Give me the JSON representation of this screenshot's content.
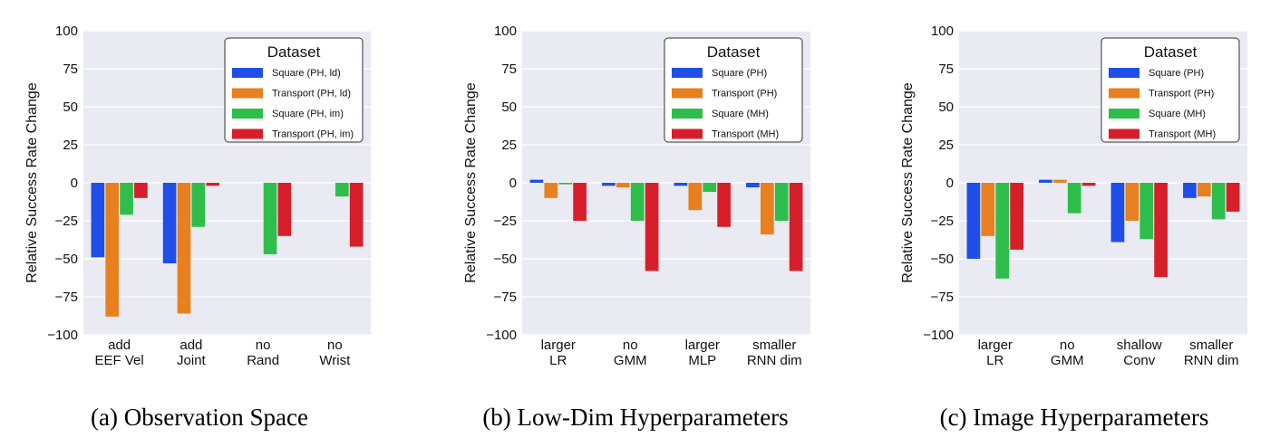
{
  "colors": {
    "plot_bg": "#EAEAF2",
    "grid": "#FFFFFF",
    "series": [
      "#1F4FE8",
      "#E8801F",
      "#2DBE4B",
      "#D61F2A"
    ]
  },
  "chart_data": [
    {
      "type": "bar",
      "caption": "(a) Observation Space",
      "ylabel": "Relative Success Rate Change",
      "ylim": [
        -100,
        100
      ],
      "yticks": [
        "100",
        "75",
        "50",
        "25",
        "0",
        "−25",
        "−50",
        "−75",
        "−100"
      ],
      "categories": [
        [
          "add",
          "EEF Vel"
        ],
        [
          "add",
          "Joint"
        ],
        [
          "no",
          "Rand"
        ],
        [
          "no",
          "Wrist"
        ]
      ],
      "legend": {
        "title": "Dataset",
        "position": "top-right"
      },
      "series": [
        {
          "name": "Square (PH, ld)",
          "values": [
            -49,
            -53,
            0,
            0
          ]
        },
        {
          "name": "Transport (PH, ld)",
          "values": [
            -88,
            -86,
            0,
            0
          ]
        },
        {
          "name": "Square (PH, im)",
          "values": [
            -21,
            -29,
            -47,
            -9
          ]
        },
        {
          "name": "Transport (PH, im)",
          "values": [
            -10,
            -2,
            -35,
            -42
          ]
        }
      ]
    },
    {
      "type": "bar",
      "caption": "(b) Low-Dim Hyperparameters",
      "ylabel": "Relative Success Rate Change",
      "ylim": [
        -100,
        100
      ],
      "yticks": [
        "100",
        "75",
        "50",
        "25",
        "0",
        "−25",
        "−50",
        "−75",
        "−100"
      ],
      "categories": [
        [
          "larger",
          "LR"
        ],
        [
          "no",
          "GMM"
        ],
        [
          "larger",
          "MLP"
        ],
        [
          "smaller",
          "RNN dim"
        ]
      ],
      "legend": {
        "title": "Dataset",
        "position": "top-right"
      },
      "series": [
        {
          "name": "Square (PH)",
          "values": [
            2,
            -2,
            -2,
            -3
          ]
        },
        {
          "name": "Transport (PH)",
          "values": [
            -10,
            -3,
            -18,
            -34
          ]
        },
        {
          "name": "Square (MH)",
          "values": [
            -1,
            -25,
            -6,
            -25
          ]
        },
        {
          "name": "Transport (MH)",
          "values": [
            -25,
            -58,
            -29,
            -58
          ]
        }
      ]
    },
    {
      "type": "bar",
      "caption": "(c) Image Hyperparameters",
      "ylabel": "Relative Success Rate Change",
      "ylim": [
        -100,
        100
      ],
      "yticks": [
        "100",
        "75",
        "50",
        "25",
        "0",
        "−25",
        "−50",
        "−75",
        "−100"
      ],
      "categories": [
        [
          "larger",
          "LR"
        ],
        [
          "no",
          "GMM"
        ],
        [
          "shallow",
          "Conv"
        ],
        [
          "smaller",
          "RNN dim"
        ]
      ],
      "legend": {
        "title": "Dataset",
        "position": "top-right"
      },
      "series": [
        {
          "name": "Square (PH)",
          "values": [
            -50,
            2,
            -39,
            -10
          ]
        },
        {
          "name": "Transport (PH)",
          "values": [
            -35,
            2,
            -25,
            -9
          ]
        },
        {
          "name": "Square (MH)",
          "values": [
            -63,
            -20,
            -37,
            -24
          ]
        },
        {
          "name": "Transport (MH)",
          "values": [
            -44,
            -2,
            -62,
            -19
          ]
        }
      ]
    }
  ]
}
